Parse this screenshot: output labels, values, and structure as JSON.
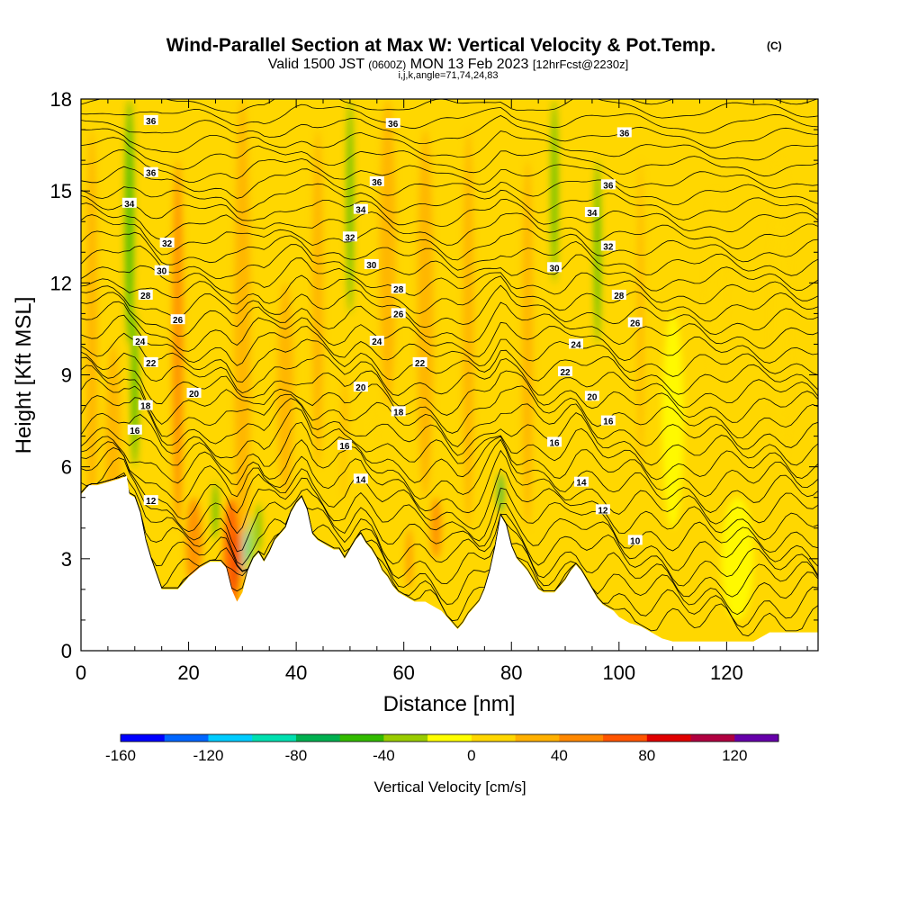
{
  "chart_data": {
    "type": "heatmap",
    "title": "Wind-Parallel Section at Max W: Vertical Velocity & Pot.Temp.",
    "title_mark": "(C)",
    "subtitle_parts": [
      "Valid 1500 JST",
      "(0600Z)",
      "MON 13 Feb 2023",
      "[12hrFcst@2230z]"
    ],
    "subtitle2": "i,j,k,angle=71,74,24,83",
    "xlabel": "Distance [nm]",
    "ylabel": "Height [Kft MSL]",
    "xlim": [
      0,
      137
    ],
    "ylim": [
      0,
      18
    ],
    "xticks": [
      0,
      20,
      40,
      60,
      80,
      100,
      120
    ],
    "yticks": [
      0,
      3,
      6,
      9,
      12,
      15,
      18
    ],
    "grid": false,
    "colorbar": {
      "label": "Vertical Velocity [cm/s]",
      "min": -160,
      "max": 140,
      "step": 20,
      "ticks": [
        -160,
        -120,
        -80,
        -40,
        0,
        40,
        80,
        120
      ],
      "colors": [
        "#0000ff",
        "#0066ff",
        "#00ccff",
        "#00e0b0",
        "#00b050",
        "#33bb00",
        "#99cc00",
        "#ffff00",
        "#ffd700",
        "#ffb000",
        "#ff8800",
        "#ff5500",
        "#e00000",
        "#b00040",
        "#6600aa"
      ]
    },
    "terrain": [
      [
        0,
        5.1
      ],
      [
        1.5,
        5.4
      ],
      [
        3,
        5.4
      ],
      [
        5,
        5.5
      ],
      [
        7,
        5.6
      ],
      [
        8.5,
        5.7
      ],
      [
        9,
        5.1
      ],
      [
        10,
        5.0
      ],
      [
        11,
        4.5
      ],
      [
        12,
        3.6
      ],
      [
        13,
        3.0
      ],
      [
        14,
        2.5
      ],
      [
        15,
        2.0
      ],
      [
        16,
        2.0
      ],
      [
        17,
        2.0
      ],
      [
        18,
        2.0
      ],
      [
        19,
        2.2
      ],
      [
        20,
        2.4
      ],
      [
        22,
        2.7
      ],
      [
        24,
        2.9
      ],
      [
        26,
        2.9
      ],
      [
        27,
        2.7
      ],
      [
        28,
        2.0
      ],
      [
        29,
        1.6
      ],
      [
        30,
        1.9
      ],
      [
        31,
        2.6
      ],
      [
        32,
        3.0
      ],
      [
        33,
        3.2
      ],
      [
        34,
        2.9
      ],
      [
        35,
        3.2
      ],
      [
        36,
        3.6
      ],
      [
        37,
        3.8
      ],
      [
        38,
        4.0
      ],
      [
        39,
        4.5
      ],
      [
        40,
        4.8
      ],
      [
        41,
        5.0
      ],
      [
        42,
        4.6
      ],
      [
        43,
        3.8
      ],
      [
        44,
        3.6
      ],
      [
        45,
        3.5
      ],
      [
        46,
        3.4
      ],
      [
        47,
        3.3
      ],
      [
        48,
        3.3
      ],
      [
        49,
        3.0
      ],
      [
        50,
        3.3
      ],
      [
        51,
        3.6
      ],
      [
        52,
        3.8
      ],
      [
        53,
        3.5
      ],
      [
        54,
        3.3
      ],
      [
        55,
        3.0
      ],
      [
        56,
        2.6
      ],
      [
        57,
        2.4
      ],
      [
        58,
        2.1
      ],
      [
        59,
        1.9
      ],
      [
        60,
        1.8
      ],
      [
        61,
        1.7
      ],
      [
        62,
        1.6
      ],
      [
        64,
        1.6
      ],
      [
        66,
        1.4
      ],
      [
        67,
        1.3
      ],
      [
        68,
        1.1
      ],
      [
        69,
        0.9
      ],
      [
        70,
        0.7
      ],
      [
        71,
        0.9
      ],
      [
        72,
        1.2
      ],
      [
        73,
        1.4
      ],
      [
        74,
        1.6
      ],
      [
        75,
        2.0
      ],
      [
        76,
        2.6
      ],
      [
        77,
        3.4
      ],
      [
        78,
        4.4
      ],
      [
        79,
        4.1
      ],
      [
        80,
        3.4
      ],
      [
        81,
        3.0
      ],
      [
        82,
        2.8
      ],
      [
        83,
        2.6
      ],
      [
        84,
        2.3
      ],
      [
        85,
        2.0
      ],
      [
        86,
        1.9
      ],
      [
        87,
        1.9
      ],
      [
        88,
        1.9
      ],
      [
        89,
        2.1
      ],
      [
        90,
        2.3
      ],
      [
        91,
        2.6
      ],
      [
        92,
        2.8
      ],
      [
        93,
        2.6
      ],
      [
        94,
        2.3
      ],
      [
        95,
        2.0
      ],
      [
        96,
        1.7
      ],
      [
        97,
        1.5
      ],
      [
        98,
        1.4
      ],
      [
        99,
        1.3
      ],
      [
        100,
        1.1
      ],
      [
        102,
        0.9
      ],
      [
        104,
        0.8
      ],
      [
        106,
        0.6
      ],
      [
        108,
        0.4
      ],
      [
        110,
        0.3
      ],
      [
        120,
        0.3
      ],
      [
        125,
        0.3
      ],
      [
        126,
        0.4
      ],
      [
        128,
        0.6
      ],
      [
        137,
        0.6
      ]
    ],
    "theta_contour_labels": [
      {
        "v": "36",
        "x": 13,
        "y": 17.3
      },
      {
        "v": "36",
        "x": 58,
        "y": 17.2
      },
      {
        "v": "36",
        "x": 101,
        "y": 16.9
      },
      {
        "v": "36",
        "x": 13,
        "y": 15.6
      },
      {
        "v": "36",
        "x": 55,
        "y": 15.3
      },
      {
        "v": "36",
        "x": 98,
        "y": 15.2
      },
      {
        "v": "34",
        "x": 9,
        "y": 14.6
      },
      {
        "v": "34",
        "x": 52,
        "y": 14.4
      },
      {
        "v": "34",
        "x": 95,
        "y": 14.3
      },
      {
        "v": "32",
        "x": 16,
        "y": 13.3
      },
      {
        "v": "32",
        "x": 50,
        "y": 13.5
      },
      {
        "v": "32",
        "x": 98,
        "y": 13.2
      },
      {
        "v": "30",
        "x": 15,
        "y": 12.4
      },
      {
        "v": "30",
        "x": 54,
        "y": 12.6
      },
      {
        "v": "30",
        "x": 88,
        "y": 12.5
      },
      {
        "v": "28",
        "x": 12,
        "y": 11.6
      },
      {
        "v": "28",
        "x": 59,
        "y": 11.8
      },
      {
        "v": "28",
        "x": 100,
        "y": 11.6
      },
      {
        "v": "26",
        "x": 18,
        "y": 10.8
      },
      {
        "v": "26",
        "x": 59,
        "y": 11.0
      },
      {
        "v": "26",
        "x": 103,
        "y": 10.7
      },
      {
        "v": "24",
        "x": 11,
        "y": 10.1
      },
      {
        "v": "24",
        "x": 55,
        "y": 10.1
      },
      {
        "v": "24",
        "x": 92,
        "y": 10.0
      },
      {
        "v": "22",
        "x": 13,
        "y": 9.4
      },
      {
        "v": "22",
        "x": 63,
        "y": 9.4
      },
      {
        "v": "22",
        "x": 90,
        "y": 9.1
      },
      {
        "v": "20",
        "x": 21,
        "y": 8.4
      },
      {
        "v": "20",
        "x": 52,
        "y": 8.6
      },
      {
        "v": "20",
        "x": 95,
        "y": 8.3
      },
      {
        "v": "18",
        "x": 12,
        "y": 8.0
      },
      {
        "v": "18",
        "x": 59,
        "y": 7.8
      },
      {
        "v": "16",
        "x": 98,
        "y": 7.5
      },
      {
        "v": "16",
        "x": 10,
        "y": 7.2
      },
      {
        "v": "16",
        "x": 49,
        "y": 6.7
      },
      {
        "v": "16",
        "x": 88,
        "y": 6.8
      },
      {
        "v": "14",
        "x": 52,
        "y": 5.6
      },
      {
        "v": "14",
        "x": 93,
        "y": 5.5
      },
      {
        "v": "12",
        "x": 13,
        "y": 4.9
      },
      {
        "v": "12",
        "x": 97,
        "y": 4.6
      },
      {
        "v": "10",
        "x": 103,
        "y": 3.6
      }
    ]
  }
}
